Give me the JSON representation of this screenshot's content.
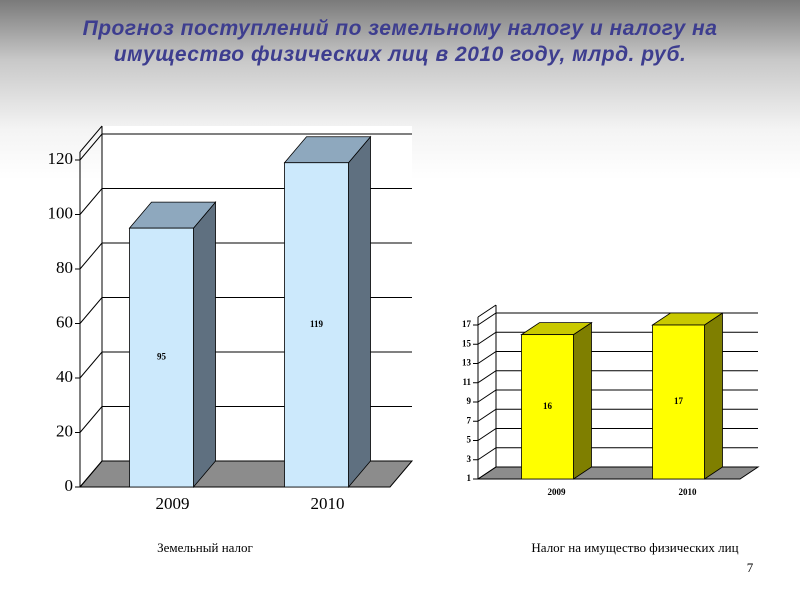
{
  "title": "Прогноз поступлений по земельному налогу и налогу на имущество физических лиц в 2010 году, млрд. руб.",
  "page_number": "7",
  "chart_data": [
    {
      "type": "bar3d",
      "caption": "Земельный налог",
      "categories": [
        "2009",
        "2010"
      ],
      "values": [
        95,
        119
      ],
      "color": "#cce9fc",
      "top_color": "#8ea8be",
      "side_color": "#5f7080",
      "ylim": [
        0,
        120
      ],
      "yticks": [
        0,
        20,
        40,
        60,
        80,
        100,
        120
      ],
      "grid": true
    },
    {
      "type": "bar3d",
      "caption": "Налог на имущество физических лиц",
      "categories": [
        "2009",
        "2010"
      ],
      "values": [
        16,
        17
      ],
      "color": "#ffff00",
      "top_color": "#c9c900",
      "side_color": "#7f7f00",
      "ylim": [
        1,
        17
      ],
      "yticks": [
        1,
        3,
        5,
        7,
        9,
        11,
        13,
        15,
        17
      ],
      "grid": true
    }
  ]
}
